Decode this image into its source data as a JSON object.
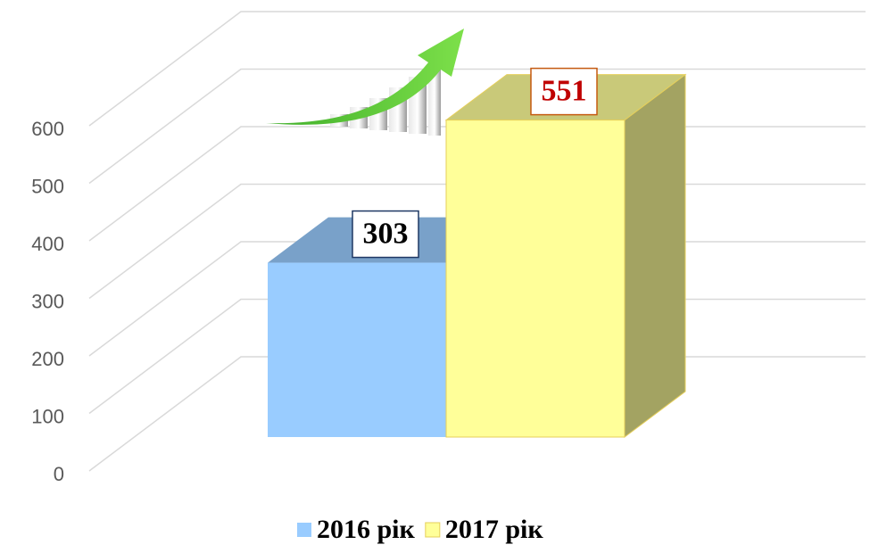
{
  "chart_data": {
    "type": "bar3d",
    "series": [
      {
        "name": "2016 рік",
        "color": "#99ccff",
        "values": [
          303
        ]
      },
      {
        "name": "2017 рік",
        "color": "#ffff99",
        "values": [
          551
        ]
      }
    ],
    "ylim": [
      0,
      600
    ],
    "yticks": [
      0,
      100,
      200,
      300,
      400,
      500,
      600
    ],
    "grid": true,
    "legend": "bottom"
  }
}
